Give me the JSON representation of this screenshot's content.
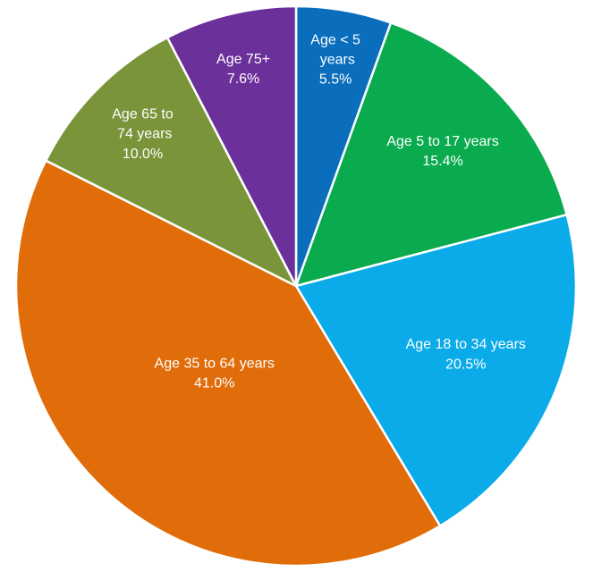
{
  "chart_data": {
    "type": "pie",
    "categories": [
      "Age < 5 years",
      "Age 5 to 17 years",
      "Age 18 to 34 years",
      "Age 35 to 64 years",
      "Age 65 to 74 years",
      "Age 75+"
    ],
    "values": [
      5.5,
      15.4,
      20.5,
      41.0,
      10.0,
      7.6
    ],
    "value_labels": [
      "5.5%",
      "15.4%",
      "20.5%",
      "41.0%",
      "10.0%",
      "7.6%"
    ],
    "colors": [
      "#0a6ebd",
      "#0aab4e",
      "#0aabe8",
      "#e06c0a",
      "#7a943a",
      "#6b3099"
    ]
  }
}
